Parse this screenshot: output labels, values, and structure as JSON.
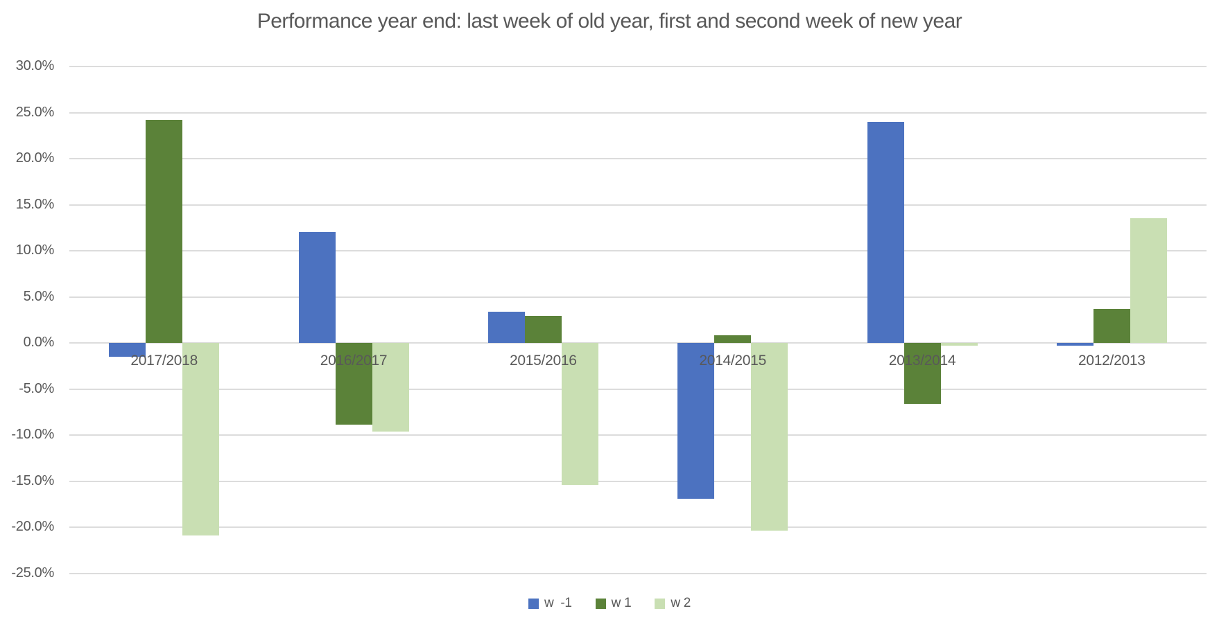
{
  "chart_data": {
    "type": "bar",
    "title": "Performance year end: last week of old year, first and second week of new year",
    "categories": [
      "2017/2018",
      "2016/2017",
      "2015/2016",
      "2014/2015",
      "2013/2014",
      "2012/2013"
    ],
    "series": [
      {
        "name": "w  -1",
        "color": "#4C72C0",
        "values": [
          -1.5,
          12.0,
          3.4,
          -16.9,
          24.0,
          -0.3
        ]
      },
      {
        "name": "w 1",
        "color": "#5B8239",
        "values": [
          24.2,
          -8.9,
          2.9,
          0.8,
          -6.6,
          3.7
        ]
      },
      {
        "name": "w 2",
        "color": "#C9DFB3",
        "values": [
          -20.9,
          -9.6,
          -15.4,
          -20.4,
          -0.3,
          13.5
        ]
      }
    ],
    "xlabel": "",
    "ylabel": "",
    "ylim": [
      -25,
      30
    ],
    "ytick_step": 5,
    "ytick_labels": [
      "30.0%",
      "25.0%",
      "20.0%",
      "15.0%",
      "10.0%",
      "5.0%",
      "0.0%",
      "-5.0%",
      "-10.0%",
      "-15.0%",
      "-20.0%",
      "-25.0%"
    ],
    "grid": true,
    "legend_position": "bottom"
  },
  "style": {
    "text_color": "#595959",
    "gridline_color": "#DCDCDC",
    "background": "#FFFFFF"
  }
}
